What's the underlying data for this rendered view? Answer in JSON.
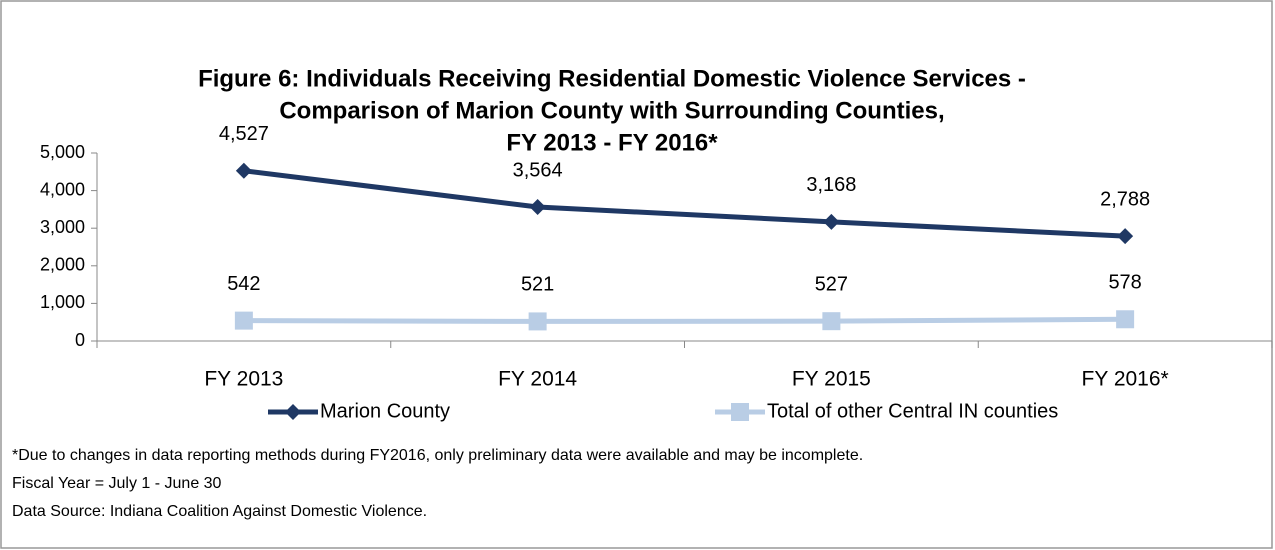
{
  "chart_data": {
    "type": "line",
    "title": [
      "Figure 6: Individuals Receiving Residential Domestic Violence Services -",
      "Comparison of Marion County with Surrounding Counties,",
      "FY 2013 - FY 2016*"
    ],
    "categories": [
      "FY 2013",
      "FY 2014",
      "FY 2015",
      "FY 2016*"
    ],
    "series": [
      {
        "name": "Marion County",
        "color": "#1f3864",
        "marker": "diamond",
        "values": [
          4527,
          3564,
          3168,
          2788
        ],
        "value_labels": [
          "4,527",
          "3,564",
          "3,168",
          "2,788"
        ]
      },
      {
        "name": "Total of other Central IN counties",
        "color": "#b9cde5",
        "marker": "square",
        "values": [
          542,
          521,
          527,
          578
        ],
        "value_labels": [
          "542",
          "521",
          "527",
          "578"
        ]
      }
    ],
    "ylim": [
      0,
      5000
    ],
    "yticks": [
      0,
      {
        "value": 1000,
        "label": "1,000"
      },
      {
        "value": 2000,
        "label": "2,000"
      },
      {
        "value": 3000,
        "label": "3,000"
      },
      {
        "value": 4000,
        "label": "4,000"
      },
      {
        "value": 5000,
        "label": "5,000"
      }
    ],
    "grid": false,
    "legend": "bottom",
    "notes": [
      "*Due to changes in data reporting methods during FY2016, only preliminary data were available and may be incomplete.",
      "Fiscal Year = July 1 - June 30",
      "Data Source: Indiana Coalition Against Domestic Violence."
    ]
  }
}
